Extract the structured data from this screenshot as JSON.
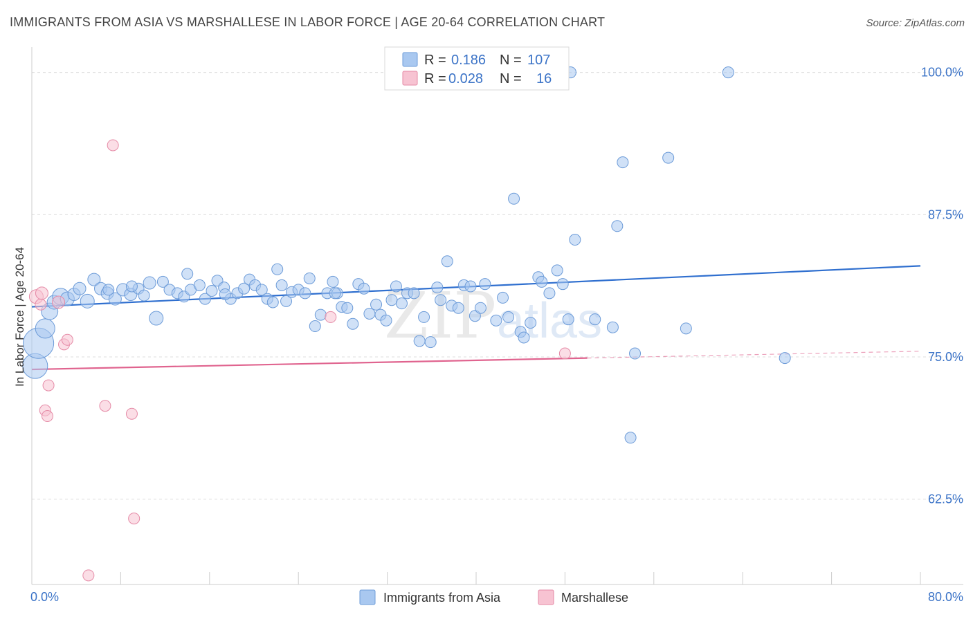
{
  "title": "IMMIGRANTS FROM ASIA VS MARSHALLESE IN LABOR FORCE | AGE 20-64 CORRELATION CHART",
  "source": "Source: ZipAtlas.com",
  "watermark": "ZIPatlas",
  "colors": {
    "blue_fill": "#a9c8f0",
    "blue_stroke": "#6c9bd8",
    "blue_line": "#2f6fcf",
    "pink_fill": "#f7c3d2",
    "pink_stroke": "#e58aa6",
    "pink_line": "#e0648f",
    "tick_text": "#3b73c7",
    "grid": "#dddddd"
  },
  "legend": {
    "rows": [
      {
        "r_label": "R =",
        "r_value": "0.186",
        "n_label": "N =",
        "n_value": "107"
      },
      {
        "r_label": "R =",
        "r_value": "0.028",
        "n_label": "N =",
        "n_value": "16"
      }
    ]
  },
  "chart_data": {
    "type": "scatter",
    "title": "IMMIGRANTS FROM ASIA VS MARSHALLESE IN LABOR FORCE | AGE 20-64 CORRELATION CHART",
    "xlabel": "",
    "ylabel": "In Labor Force | Age 20-64",
    "xlim": [
      0,
      80
    ],
    "ylim": [
      55,
      101.5
    ],
    "x_tick_labels": [
      "0.0%",
      "80.0%"
    ],
    "y_ticks": [
      62.5,
      75.0,
      87.5,
      100.0
    ],
    "y_tick_labels": [
      "62.5%",
      "75.0%",
      "87.5%",
      "100.0%"
    ],
    "grid": true,
    "legend_position": "top-center",
    "series": [
      {
        "name": "Immigrants from Asia",
        "color": "#a9c8f0",
        "trend": {
          "x": [
            0,
            80
          ],
          "y": [
            79.4,
            83.0
          ],
          "style": "solid"
        },
        "points": [
          [
            0.3,
            74.2,
            18
          ],
          [
            0.6,
            76.2,
            22
          ],
          [
            1.2,
            77.5,
            14
          ],
          [
            1.6,
            79.0,
            12
          ],
          [
            2.0,
            79.8,
            10
          ],
          [
            2.6,
            80.3,
            12
          ],
          [
            3.2,
            80.1,
            10
          ],
          [
            3.8,
            80.5,
            9
          ],
          [
            4.3,
            81.0,
            9
          ],
          [
            5.0,
            79.9,
            10
          ],
          [
            5.6,
            81.8,
            9
          ],
          [
            6.2,
            81.0,
            9
          ],
          [
            6.8,
            80.6,
            9
          ],
          [
            7.5,
            80.1,
            9
          ],
          [
            8.2,
            80.9,
            9
          ],
          [
            8.9,
            80.5,
            9
          ],
          [
            9.6,
            81.0,
            8
          ],
          [
            10.1,
            80.4,
            8
          ],
          [
            10.6,
            81.5,
            9
          ],
          [
            11.2,
            78.4,
            10
          ],
          [
            11.8,
            81.6,
            8
          ],
          [
            12.4,
            80.9,
            8
          ],
          [
            13.1,
            80.6,
            8
          ],
          [
            13.7,
            80.3,
            8
          ],
          [
            14.3,
            80.9,
            8
          ],
          [
            14.0,
            82.3,
            8
          ],
          [
            15.1,
            81.3,
            8
          ],
          [
            15.6,
            80.1,
            8
          ],
          [
            16.2,
            80.8,
            8
          ],
          [
            16.7,
            81.7,
            8
          ],
          [
            17.3,
            81.1,
            8
          ],
          [
            17.9,
            80.1,
            8
          ],
          [
            18.5,
            80.6,
            8
          ],
          [
            19.1,
            81.0,
            8
          ],
          [
            19.6,
            81.8,
            8
          ],
          [
            20.1,
            81.3,
            8
          ],
          [
            20.7,
            80.9,
            8
          ],
          [
            21.2,
            80.1,
            8
          ],
          [
            21.7,
            79.8,
            8
          ],
          [
            22.1,
            82.7,
            8
          ],
          [
            22.5,
            81.3,
            8
          ],
          [
            22.9,
            79.9,
            8
          ],
          [
            23.4,
            80.7,
            8
          ],
          [
            24.0,
            80.9,
            8
          ],
          [
            24.6,
            80.6,
            8
          ],
          [
            25.0,
            81.9,
            8
          ],
          [
            25.5,
            77.7,
            8
          ],
          [
            26.0,
            78.7,
            8
          ],
          [
            26.6,
            80.6,
            8
          ],
          [
            27.1,
            81.6,
            8
          ],
          [
            27.5,
            80.6,
            8
          ],
          [
            27.9,
            79.4,
            8
          ],
          [
            28.4,
            79.3,
            8
          ],
          [
            28.9,
            77.9,
            8
          ],
          [
            29.4,
            81.4,
            8
          ],
          [
            29.9,
            81.0,
            8
          ],
          [
            30.4,
            78.8,
            8
          ],
          [
            31.0,
            79.6,
            8
          ],
          [
            31.4,
            78.7,
            8
          ],
          [
            31.9,
            78.2,
            8
          ],
          [
            32.4,
            80.0,
            8
          ],
          [
            32.8,
            81.2,
            8
          ],
          [
            33.3,
            79.7,
            8
          ],
          [
            33.8,
            80.6,
            8
          ],
          [
            34.4,
            80.6,
            8
          ],
          [
            34.9,
            76.4,
            8
          ],
          [
            35.3,
            78.5,
            8
          ],
          [
            35.9,
            76.3,
            8
          ],
          [
            36.5,
            81.1,
            8
          ],
          [
            36.8,
            80.0,
            8
          ],
          [
            37.4,
            83.4,
            8
          ],
          [
            37.8,
            79.5,
            8
          ],
          [
            38.4,
            79.3,
            8
          ],
          [
            38.9,
            81.3,
            8
          ],
          [
            39.5,
            81.2,
            8
          ],
          [
            39.9,
            78.6,
            8
          ],
          [
            40.4,
            79.3,
            8
          ],
          [
            40.8,
            81.4,
            8
          ],
          [
            41.8,
            78.2,
            8
          ],
          [
            42.4,
            80.2,
            8
          ],
          [
            42.9,
            78.5,
            8
          ],
          [
            43.4,
            88.9,
            8
          ],
          [
            44.0,
            77.2,
            8
          ],
          [
            44.3,
            76.7,
            8
          ],
          [
            44.9,
            78.0,
            8
          ],
          [
            45.6,
            82.0,
            8
          ],
          [
            45.9,
            81.6,
            8
          ],
          [
            46.6,
            80.6,
            8
          ],
          [
            47.3,
            82.6,
            8
          ],
          [
            47.8,
            81.4,
            8
          ],
          [
            48.3,
            78.3,
            8
          ],
          [
            48.5,
            100.0,
            8
          ],
          [
            48.9,
            85.3,
            8
          ],
          [
            50.7,
            78.3,
            8
          ],
          [
            52.3,
            77.6,
            8
          ],
          [
            52.7,
            86.5,
            8
          ],
          [
            53.2,
            92.1,
            8
          ],
          [
            53.9,
            67.9,
            8
          ],
          [
            54.3,
            75.3,
            8
          ],
          [
            57.3,
            92.5,
            8
          ],
          [
            58.9,
            77.5,
            8
          ],
          [
            62.7,
            100.0,
            8
          ],
          [
            67.8,
            74.9,
            8
          ],
          [
            27.3,
            80.6,
            8
          ],
          [
            17.4,
            80.5,
            8
          ],
          [
            9.0,
            81.2,
            8
          ],
          [
            6.9,
            80.9,
            8
          ]
        ]
      },
      {
        "name": "Marshallese",
        "color": "#f7c3d2",
        "trend": {
          "x": [
            0,
            50
          ],
          "y": [
            73.9,
            74.9
          ],
          "style": "solid",
          "extend_to": [
            80,
            75.5
          ],
          "extend_style": "dashed"
        },
        "points": [
          [
            0.4,
            80.3,
            10
          ],
          [
            0.8,
            79.6,
            8
          ],
          [
            0.9,
            80.6,
            9
          ],
          [
            1.2,
            70.3,
            8
          ],
          [
            1.4,
            69.8,
            8
          ],
          [
            1.5,
            72.5,
            8
          ],
          [
            2.4,
            79.8,
            9
          ],
          [
            2.9,
            76.1,
            8
          ],
          [
            3.2,
            76.5,
            8
          ],
          [
            5.1,
            55.8,
            8
          ],
          [
            6.6,
            70.7,
            8
          ],
          [
            7.3,
            93.6,
            8
          ],
          [
            9.0,
            70.0,
            8
          ],
          [
            9.2,
            60.8,
            8
          ],
          [
            26.9,
            78.5,
            8
          ],
          [
            48.0,
            75.3,
            8
          ]
        ]
      }
    ]
  },
  "bottom_legend": [
    {
      "label": "Immigrants from Asia"
    },
    {
      "label": "Marshallese"
    }
  ]
}
